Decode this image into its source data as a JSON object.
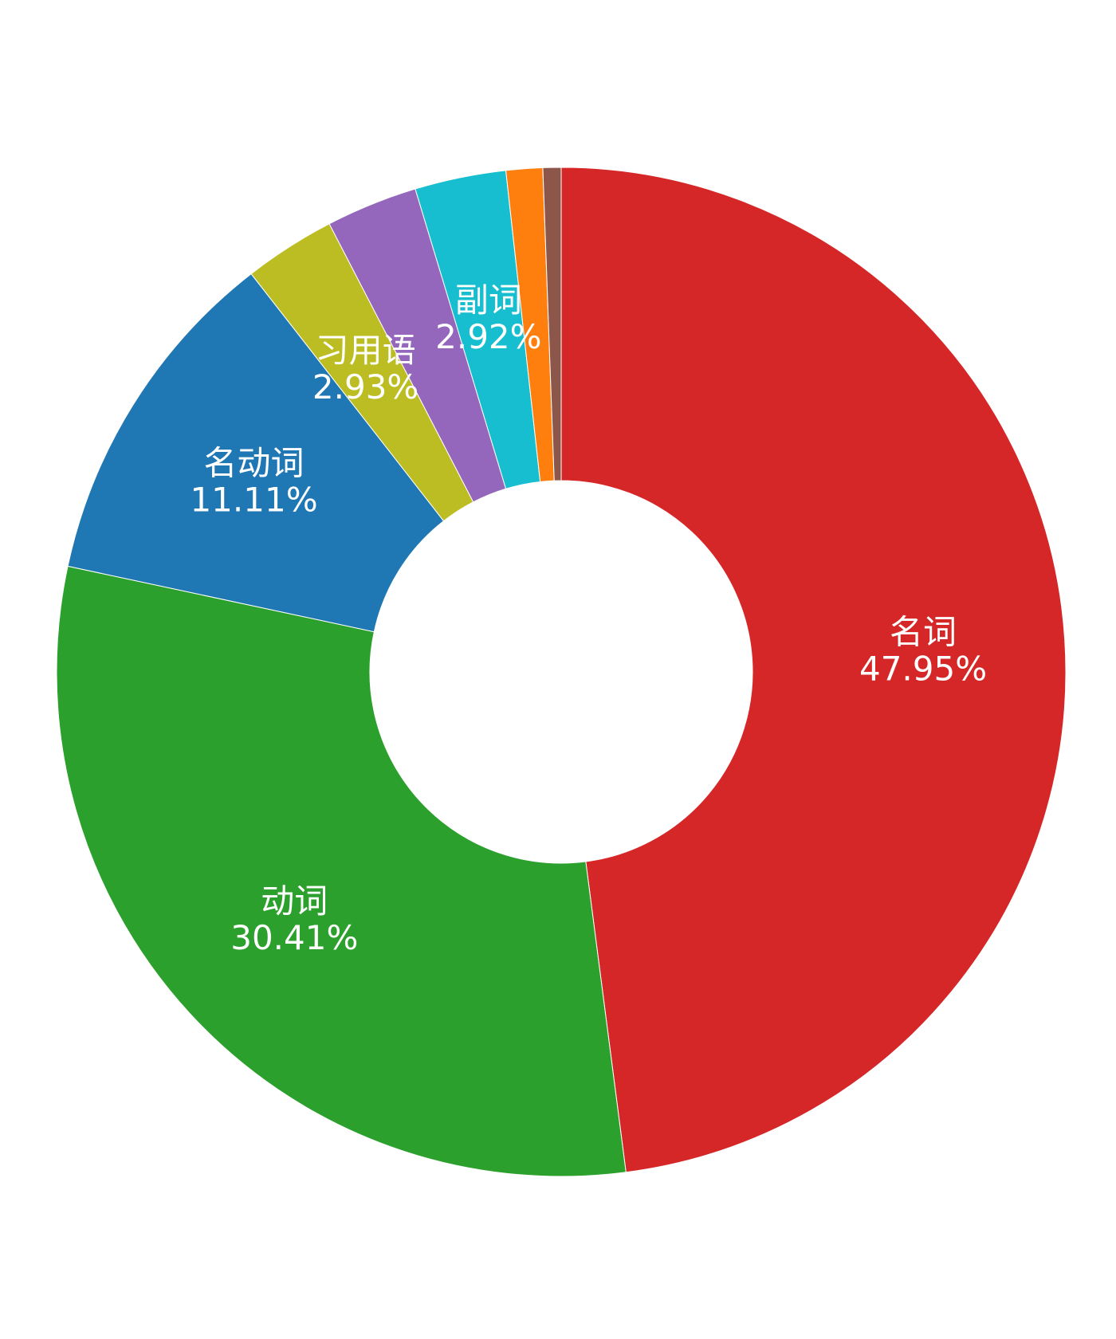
{
  "chart_data": {
    "type": "pie",
    "donut": true,
    "start": "12 o'clock, clockwise",
    "slices": [
      {
        "name": "名词",
        "value": 47.95,
        "label": "47.95%",
        "color": "#d62728",
        "show_label": true
      },
      {
        "name": "动词",
        "value": 30.41,
        "label": "30.41%",
        "color": "#2ca02c",
        "show_label": true
      },
      {
        "name": "名动词",
        "value": 11.11,
        "label": "11.11%",
        "color": "#1f77b4",
        "show_label": true
      },
      {
        "name": "习用语",
        "value": 2.93,
        "label": "2.93%",
        "color": "#bcbd22",
        "show_label": true
      },
      {
        "name": "",
        "value": 2.93,
        "label": "",
        "color": "#9467bd",
        "show_label": false
      },
      {
        "name": "副词",
        "value": 2.92,
        "label": "2.92%",
        "color": "#17becf",
        "show_label": true
      },
      {
        "name": "",
        "value": 1.17,
        "label": "",
        "color": "#ff7f0e",
        "show_label": false
      },
      {
        "name": "",
        "value": 0.58,
        "label": "",
        "color": "#8c564b",
        "show_label": false
      }
    ],
    "legend": "none",
    "title": ""
  }
}
